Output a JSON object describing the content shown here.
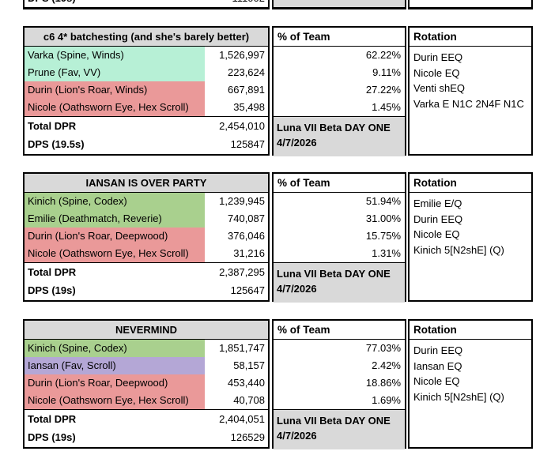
{
  "colors": {
    "mint": "#b7f0d6",
    "green": "#a9d08e",
    "red": "#ea9999",
    "purple": "#b4a7d6",
    "header_gray": "#d9d9d9",
    "border": "#000000"
  },
  "partial_top_row": {
    "dps_label": "DPS (19s)",
    "dps_value": "111002"
  },
  "tables": [
    {
      "title": "c6 4* batchesting (and she's barely better)",
      "pct_header": "% of Team",
      "rotation_header": "Rotation",
      "characters": [
        {
          "name": "Varka (Spine, Winds)",
          "dpr": "1,526,997",
          "pct": "62.22%",
          "color": "mint"
        },
        {
          "name": "Prune (Fav, VV)",
          "dpr": "223,624",
          "pct": "9.11%",
          "color": "mint"
        },
        {
          "name": "Durin (Lion's Roar, Winds)",
          "dpr": "667,891",
          "pct": "27.22%",
          "color": "red"
        },
        {
          "name": "Nicole (Oathsworn Eye, Hex Scroll)",
          "dpr": "35,498",
          "pct": "1.45%",
          "color": "red"
        }
      ],
      "total_label": "Total DPR",
      "total_value": "2,454,010",
      "dps_label": "DPS (19.5s)",
      "dps_value": "125847",
      "note_line1": "Luna VII Beta DAY ONE",
      "note_line2": "4/7/2026",
      "rotation": [
        "Durin EEQ",
        "Nicole EQ",
        "Venti shEQ",
        "Varka E N1C 2N4F N1C"
      ]
    },
    {
      "title": "IANSAN IS OVER PARTY",
      "pct_header": "% of Team",
      "rotation_header": "Rotation",
      "characters": [
        {
          "name": "Kinich (Spine, Codex)",
          "dpr": "1,239,945",
          "pct": "51.94%",
          "color": "green"
        },
        {
          "name": "Emilie (Deathmatch, Reverie)",
          "dpr": "740,087",
          "pct": "31.00%",
          "color": "green"
        },
        {
          "name": "Durin (Lion's Roar, Deepwood)",
          "dpr": "376,046",
          "pct": "15.75%",
          "color": "red"
        },
        {
          "name": "Nicole (Oathsworn Eye, Hex Scroll)",
          "dpr": "31,216",
          "pct": "1.31%",
          "color": "red"
        }
      ],
      "total_label": "Total DPR",
      "total_value": "2,387,295",
      "dps_label": "DPS (19s)",
      "dps_value": "125647",
      "note_line1": "Luna VII Beta DAY ONE",
      "note_line2": "4/7/2026",
      "rotation": [
        "Emilie E/Q",
        "Durin EEQ",
        "Nicole EQ",
        "Kinich 5[N2shE] (Q)"
      ]
    },
    {
      "title": "NEVERMIND",
      "pct_header": "% of Team",
      "rotation_header": "Rotation",
      "characters": [
        {
          "name": "Kinich (Spine, Codex)",
          "dpr": "1,851,747",
          "pct": "77.03%",
          "color": "green"
        },
        {
          "name": "Iansan (Fav, Scroll)",
          "dpr": "58,157",
          "pct": "2.42%",
          "color": "purple"
        },
        {
          "name": "Durin (Lion's Roar, Deepwood)",
          "dpr": "453,440",
          "pct": "18.86%",
          "color": "red"
        },
        {
          "name": "Nicole (Oathsworn Eye, Hex Scroll)",
          "dpr": "40,708",
          "pct": "1.69%",
          "color": "red"
        }
      ],
      "total_label": "Total DPR",
      "total_value": "2,404,051",
      "dps_label": "DPS (19s)",
      "dps_value": "126529",
      "note_line1": "Luna VII Beta DAY ONE",
      "note_line2": "4/7/2026",
      "rotation": [
        "Durin EEQ",
        "Iansan EQ",
        "Nicole EQ",
        "Kinich 5[N2shE] (Q)"
      ]
    }
  ]
}
